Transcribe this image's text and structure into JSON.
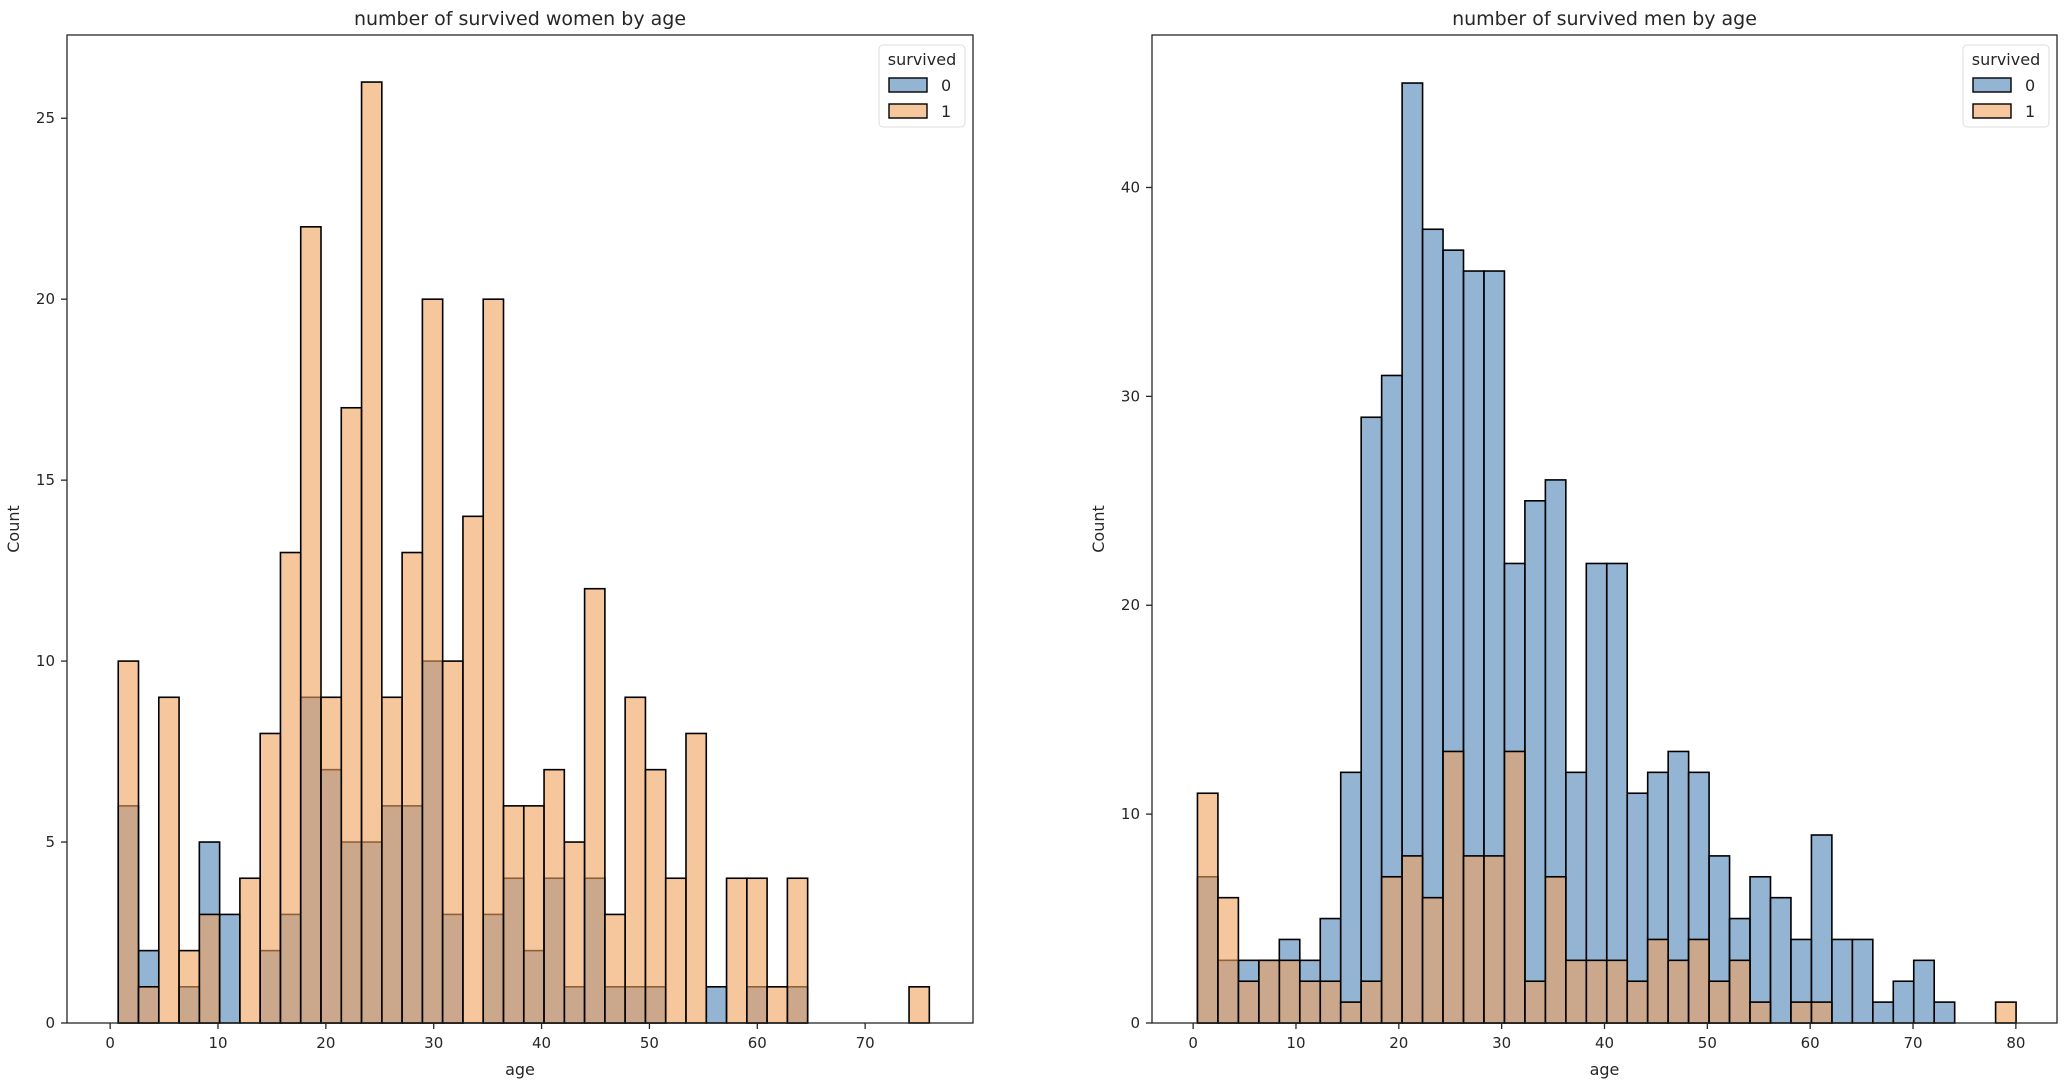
{
  "chart_data": [
    {
      "type": "bar",
      "subtype": "overlaid-histogram",
      "title": "number of survived women by age",
      "xlabel": "age",
      "ylabel": "Count",
      "xlim": [
        -4,
        80
      ],
      "ylim": [
        0,
        27.3
      ],
      "xticks": [
        0,
        10,
        20,
        30,
        40,
        50,
        60,
        70
      ],
      "yticks": [
        0,
        5,
        10,
        15,
        20,
        25
      ],
      "bin_start": 0.75,
      "bin_width": 1.88,
      "legend": {
        "title": "survived",
        "position": "top-right",
        "entries": [
          "0",
          "1"
        ]
      },
      "colors": {
        "0": "#4c82b8",
        "1": "#f0a05a",
        "overlap": "#8f9a9c"
      },
      "series": [
        {
          "name": "0",
          "values": [
            6,
            2,
            0,
            1,
            5,
            3,
            0,
            2,
            3,
            9,
            7,
            5,
            5,
            6,
            6,
            10,
            3,
            0,
            3,
            4,
            2,
            4,
            1,
            4,
            1,
            1,
            1,
            0,
            0,
            1,
            0,
            1,
            0,
            1,
            0,
            0,
            0,
            0,
            0,
            0
          ]
        },
        {
          "name": "1",
          "values": [
            10,
            1,
            9,
            2,
            3,
            0,
            4,
            8,
            13,
            22,
            9,
            17,
            26,
            9,
            13,
            20,
            10,
            14,
            20,
            6,
            6,
            7,
            5,
            12,
            3,
            9,
            7,
            4,
            8,
            0,
            4,
            4,
            1,
            4,
            0,
            0,
            0,
            0,
            0,
            1
          ]
        }
      ]
    },
    {
      "type": "bar",
      "subtype": "overlaid-histogram",
      "title": "number of survived men by age",
      "xlabel": "age",
      "ylabel": "Count",
      "xlim": [
        -4,
        84
      ],
      "ylim": [
        0,
        47.3
      ],
      "xticks": [
        0,
        10,
        20,
        30,
        40,
        50,
        60,
        70,
        80
      ],
      "yticks": [
        0,
        10,
        20,
        30,
        40
      ],
      "bin_start": 0.42,
      "bin_width": 1.99,
      "legend": {
        "title": "survived",
        "position": "top-right",
        "entries": [
          "0",
          "1"
        ]
      },
      "colors": {
        "0": "#4c82b8",
        "1": "#f0a05a",
        "overlap": "#8f9a9c"
      },
      "series": [
        {
          "name": "0",
          "values": [
            7,
            3,
            3,
            3,
            4,
            3,
            5,
            12,
            29,
            31,
            45,
            38,
            37,
            36,
            36,
            22,
            25,
            26,
            12,
            22,
            22,
            11,
            12,
            13,
            12,
            8,
            5,
            7,
            6,
            4,
            9,
            4,
            4,
            1,
            2,
            3,
            1,
            0,
            0,
            0
          ]
        },
        {
          "name": "1",
          "values": [
            11,
            6,
            2,
            3,
            3,
            2,
            2,
            1,
            2,
            7,
            8,
            6,
            13,
            8,
            8,
            13,
            2,
            7,
            3,
            3,
            3,
            2,
            4,
            3,
            4,
            2,
            3,
            1,
            0,
            1,
            1,
            0,
            0,
            0,
            0,
            0,
            0,
            0,
            0,
            1
          ]
        }
      ]
    }
  ]
}
